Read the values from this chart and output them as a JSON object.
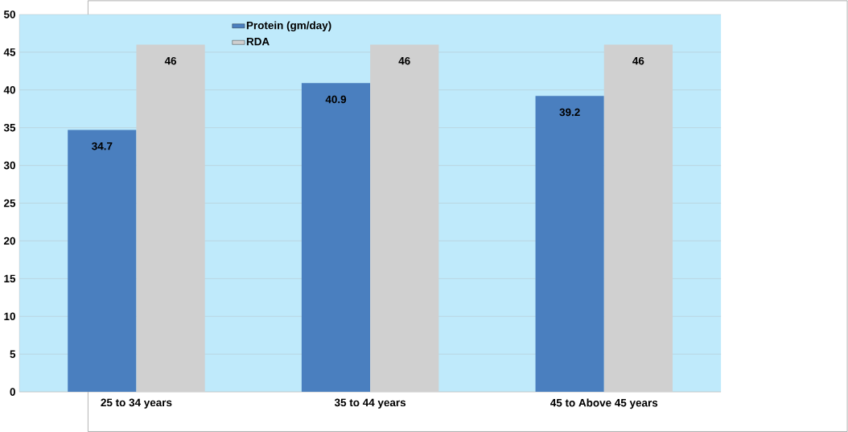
{
  "chart_data": {
    "type": "bar",
    "categories": [
      "25 to 34 years",
      "35 to 44 years",
      "45 to Above 45 years"
    ],
    "series": [
      {
        "name": "Protein (gm/day)",
        "color": "#4a7fbf",
        "values": [
          34.7,
          40.9,
          39.2
        ]
      },
      {
        "name": "RDA",
        "color": "#d0d0d0",
        "values": [
          46,
          46,
          46
        ]
      }
    ],
    "ylim": [
      0,
      50
    ],
    "yticks": [
      0,
      5,
      10,
      15,
      20,
      25,
      30,
      35,
      40,
      45,
      50
    ],
    "grid": "y",
    "legend": "top",
    "data_labels": true
  }
}
